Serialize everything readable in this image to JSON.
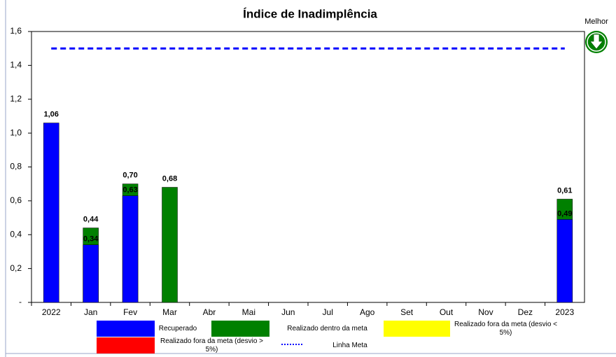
{
  "chart_data": {
    "type": "bar",
    "title": "Índice de Inadimplência",
    "note": "Melhor",
    "categories": [
      "2022",
      "Jan",
      "Fev",
      "Mar",
      "Abr",
      "Mai",
      "Jun",
      "Jul",
      "Ago",
      "Set",
      "Out",
      "Nov",
      "Dez",
      "2023"
    ],
    "series": [
      {
        "name": "Realizado dentro da meta",
        "color": "#008000",
        "values": [
          null,
          0.44,
          0.7,
          0.68,
          null,
          null,
          null,
          null,
          null,
          null,
          null,
          null,
          null,
          0.61
        ],
        "value_labels": [
          null,
          "0,44",
          "0,70",
          "0,68",
          null,
          null,
          null,
          null,
          null,
          null,
          null,
          null,
          null,
          "0,61"
        ]
      },
      {
        "name": "Recuperado",
        "color": "#0000ff",
        "values": [
          1.06,
          0.34,
          0.63,
          null,
          null,
          null,
          null,
          null,
          null,
          null,
          null,
          null,
          null,
          0.49
        ],
        "value_labels": [
          "1,06",
          "0,34",
          "0,63",
          null,
          null,
          null,
          null,
          null,
          null,
          null,
          null,
          null,
          null,
          "0,49"
        ]
      },
      {
        "name": "Realizado fora da meta (desvio < 5%)",
        "color": "#ffff00",
        "values": [
          null,
          null,
          null,
          null,
          null,
          null,
          null,
          null,
          null,
          null,
          null,
          null,
          null,
          null
        ]
      },
      {
        "name": "Realizado fora da meta (desvio > 5%)",
        "color": "#ff0000",
        "values": [
          null,
          null,
          null,
          null,
          null,
          null,
          null,
          null,
          null,
          null,
          null,
          null,
          null,
          null
        ]
      },
      {
        "name": "Linha Meta",
        "color": "#0000ff",
        "type": "line",
        "dash": true,
        "values": [
          1.5,
          1.5,
          1.5,
          1.5,
          1.5,
          1.5,
          1.5,
          1.5,
          1.5,
          1.5,
          1.5,
          1.5,
          1.5,
          1.5
        ]
      }
    ],
    "ylim": [
      0,
      1.6
    ],
    "yticks": [
      {
        "value": 0,
        "label": "-"
      },
      {
        "value": 0.2,
        "label": "0,2"
      },
      {
        "value": 0.4,
        "label": "0,4"
      },
      {
        "value": 0.6,
        "label": "0,6"
      },
      {
        "value": 0.8,
        "label": "0,8"
      },
      {
        "value": 1.0,
        "label": "1,0"
      },
      {
        "value": 1.2,
        "label": "1,2"
      },
      {
        "value": 1.4,
        "label": "1,4"
      },
      {
        "value": 1.6,
        "label": "1,6"
      }
    ],
    "grid": false
  }
}
